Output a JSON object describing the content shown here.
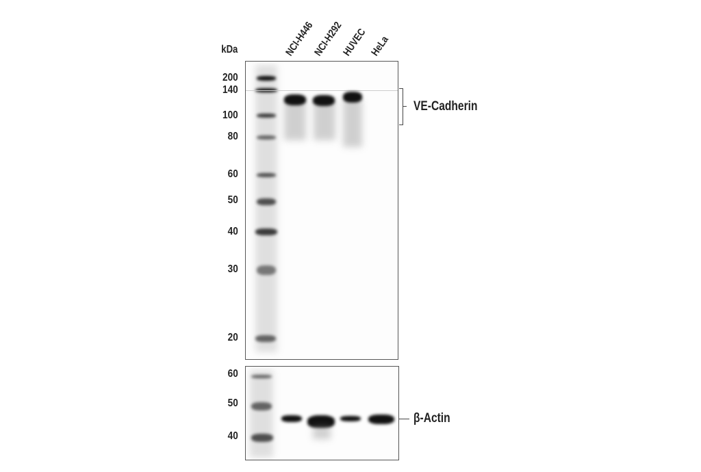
{
  "unit_label": "kDa",
  "lanes": [
    "NCI-H446",
    "NCI-H292",
    "HUVEC",
    "HeLa"
  ],
  "top_panel": {
    "markers": [
      "200",
      "140",
      "100",
      "80",
      "60",
      "50",
      "40",
      "30",
      "20"
    ],
    "target_label": "VE-Cadherin"
  },
  "bottom_panel": {
    "markers": [
      "60",
      "50",
      "40"
    ],
    "target_label": "β-Actin"
  }
}
